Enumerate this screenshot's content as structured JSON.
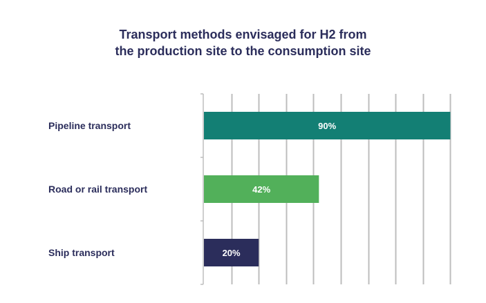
{
  "chart_data": {
    "type": "bar",
    "orientation": "horizontal",
    "title_lines": [
      "Transport methods envisaged for H2 from",
      "the production site to the consumption site"
    ],
    "categories": [
      "Pipeline transport",
      "Road or rail transport",
      "Ship transport"
    ],
    "values": [
      90,
      42,
      20
    ],
    "data_labels": [
      "90%",
      "42%",
      "20%"
    ],
    "colors": [
      "#137f74",
      "#52b05a",
      "#2b2d5b"
    ],
    "xlim": [
      0,
      100
    ],
    "grid": true,
    "legend": "none"
  }
}
